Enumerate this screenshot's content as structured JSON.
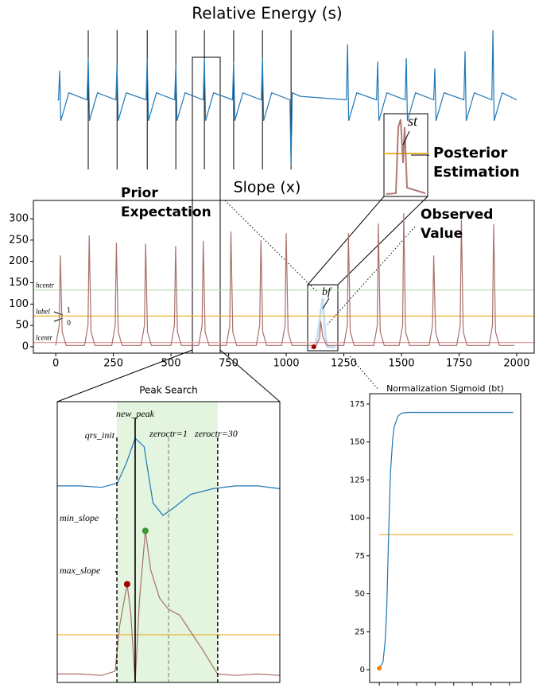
{
  "chart_data": [
    {
      "type": "line",
      "title": "Relative Energy (s)",
      "xlim": [
        -97,
        2076
      ],
      "ylim": [
        -1,
        1
      ],
      "series": [
        {
          "name": "s",
          "color": "#1f77b4",
          "x": [
            7,
            12,
            17,
            22,
            57,
            136,
            141,
            146,
            181,
            261,
            266,
            271,
            306,
            392,
            397,
            402,
            437,
            516,
            521,
            526,
            561,
            640,
            645,
            650,
            685,
            767,
            772,
            777,
            812,
            892,
            897,
            902,
            937,
            1016,
            1021,
            1026,
            1061,
            1261,
            1266,
            1271,
            1306,
            1392,
            1397,
            1402,
            1437,
            1516,
            1521,
            1526,
            1561,
            1640,
            1645,
            1650,
            1685,
            1771,
            1776,
            1781,
            1816,
            1892,
            1897,
            1902,
            1937,
            2000
          ],
          "values": [
            0,
            0,
            0.42,
            -0.3,
            0.1,
            0,
            0.6,
            -0.3,
            0.1,
            0,
            0.5,
            -0.3,
            0.1,
            0,
            0.6,
            -0.3,
            0.1,
            0,
            0.5,
            -0.3,
            0.1,
            0,
            0.6,
            -0.3,
            0.1,
            0,
            0.55,
            -0.3,
            0.1,
            0,
            0.6,
            -0.3,
            0.1,
            0,
            -0.95,
            0.1,
            0.05,
            0,
            0.8,
            -0.3,
            0.1,
            0,
            0.55,
            -0.3,
            0.1,
            0,
            0.6,
            -0.3,
            0.1,
            0,
            0.45,
            -0.3,
            0.1,
            0,
            0.7,
            -0.3,
            0.1,
            0,
            1.0,
            -0.3,
            0.1,
            0
          ]
        }
      ],
      "markers": [
        141,
        266,
        397,
        521,
        645,
        772,
        897,
        1021
      ],
      "marker_color": "#000000",
      "notes": [
        "st",
        "Posterior",
        "Estimation"
      ]
    },
    {
      "type": "line",
      "title": "Slope (x)",
      "xlim": [
        -97,
        2076
      ],
      "ylim": [
        -15,
        343
      ],
      "xticks": [
        0,
        250,
        500,
        750,
        1000,
        1250,
        1500,
        1750,
        2000
      ],
      "yticks": [
        0,
        50,
        100,
        150,
        200,
        250,
        300
      ],
      "series": [
        {
          "name": "x",
          "color": "#a8706a",
          "x": [
            0,
            15,
            20,
            28,
            45,
            125,
            140,
            145,
            153,
            170,
            243,
            258,
            263,
            271,
            288,
            370,
            385,
            390,
            398,
            415,
            500,
            515,
            520,
            528,
            545,
            620,
            635,
            640,
            648,
            665,
            740,
            755,
            760,
            768,
            785,
            870,
            885,
            890,
            898,
            915,
            980,
            995,
            1000,
            1008,
            1025,
            1130,
            1145,
            1150,
            1158,
            1175,
            1250,
            1265,
            1270,
            1278,
            1295,
            1380,
            1395,
            1400,
            1408,
            1425,
            1490,
            1505,
            1510,
            1518,
            1535,
            1620,
            1635,
            1640,
            1648,
            1665,
            1740,
            1755,
            1760,
            1768,
            1785,
            1880,
            1895,
            1900,
            1908,
            1925,
            1990
          ],
          "values": [
            3,
            50,
            214,
            35,
            3,
            3,
            50,
            261,
            35,
            3,
            3,
            50,
            244,
            35,
            3,
            3,
            50,
            242,
            35,
            3,
            3,
            50,
            236,
            35,
            3,
            3,
            50,
            248,
            35,
            3,
            3,
            50,
            270,
            35,
            3,
            3,
            50,
            250,
            35,
            3,
            3,
            50,
            266,
            35,
            3,
            3,
            20,
            60,
            25,
            3,
            3,
            50,
            266,
            35,
            3,
            3,
            50,
            289,
            35,
            3,
            3,
            50,
            313,
            35,
            3,
            3,
            50,
            214,
            35,
            3,
            3,
            50,
            298,
            35,
            3,
            3,
            50,
            287,
            35,
            3,
            3
          ]
        }
      ],
      "hlines": [
        {
          "value": 133,
          "label": "hcentr",
          "color": "#b9ddb0"
        },
        {
          "value": 72,
          "label": "label",
          "color": "#f0b030"
        },
        {
          "value": 10,
          "label": "lcentr",
          "color": "#eaa0a0"
        }
      ],
      "points": [
        {
          "x": 1120,
          "y": 0,
          "color": "#a00000"
        }
      ],
      "notes": [
        "Prior",
        "Expectation",
        "Observed",
        "Value",
        "bf",
        "1",
        "0"
      ]
    },
    {
      "type": "line",
      "title": "Peak Search",
      "xlim": [
        0,
        100
      ],
      "ylim": [
        0,
        100
      ],
      "region": [
        26.8,
        72.1
      ],
      "region_color": "#e3f4df",
      "series": [
        {
          "name": "signal",
          "color": "#1f77b4",
          "x": [
            0,
            10,
            20,
            27,
            31,
            35,
            39,
            43,
            47.5,
            52,
            60,
            70,
            80,
            90,
            100
          ],
          "values": [
            70,
            70,
            69.5,
            71,
            78,
            87,
            84,
            64,
            59.5,
            62,
            67,
            69,
            70,
            70,
            69
          ]
        },
        {
          "name": "slope",
          "color": "#a8706a",
          "x": [
            0,
            10,
            20,
            26,
            28,
            31.4,
            33,
            35,
            37,
            39.6,
            42,
            46,
            50,
            55,
            60,
            65,
            72,
            80,
            90,
            100
          ],
          "values": [
            3,
            3,
            2.5,
            4,
            20,
            35,
            25,
            0,
            30,
            54,
            40,
            30,
            26,
            24,
            18,
            12,
            3,
            2.5,
            3,
            2.5
          ]
        }
      ],
      "hlines": [
        {
          "value": 17,
          "color": "#f0b030"
        }
      ],
      "vlines": [
        {
          "x": 26.8,
          "label": "qrs_init",
          "dashed": true,
          "color": "#000000"
        },
        {
          "x": 35,
          "label": "new_peak",
          "dashed": false,
          "color": "#000000"
        },
        {
          "x": 50,
          "label": "zeroctr=1",
          "dashed": true,
          "color": "#999999"
        },
        {
          "x": 72.1,
          "label": "zeroctr=30",
          "dashed": true,
          "color": "#000000"
        }
      ],
      "points": [
        {
          "name": "max_slope",
          "x": 31.4,
          "y": 35,
          "color": "#a00000"
        },
        {
          "name": "min_slope",
          "x": 39.6,
          "y": 54,
          "color": "#3a9a3a"
        }
      ]
    },
    {
      "type": "line",
      "title": "Normalization Sigmoid (bt)",
      "xlim": [
        -13,
        190
      ],
      "ylim": [
        -8.4,
        181.8
      ],
      "xticks": [
        0,
        25,
        50,
        75,
        100,
        125,
        150,
        175
      ],
      "yticks": [
        0,
        25,
        50,
        75,
        100,
        125,
        150,
        175
      ],
      "series": [
        {
          "name": "sigmoid",
          "color": "#1f77b4",
          "x": [
            0,
            5,
            8,
            10,
            12,
            15,
            18,
            20,
            25,
            30,
            40,
            60,
            100,
            180
          ],
          "values": [
            1,
            5,
            20,
            40,
            80,
            130,
            152,
            160,
            167,
            169,
            169.5,
            169.5,
            169.5,
            169.5
          ]
        }
      ],
      "hlines": [
        {
          "value": 89,
          "color": "#f0b030",
          "from": 0,
          "to": 180
        }
      ],
      "points": [
        {
          "x": 0,
          "y": 1,
          "color": "#ff7f0e"
        }
      ]
    }
  ]
}
